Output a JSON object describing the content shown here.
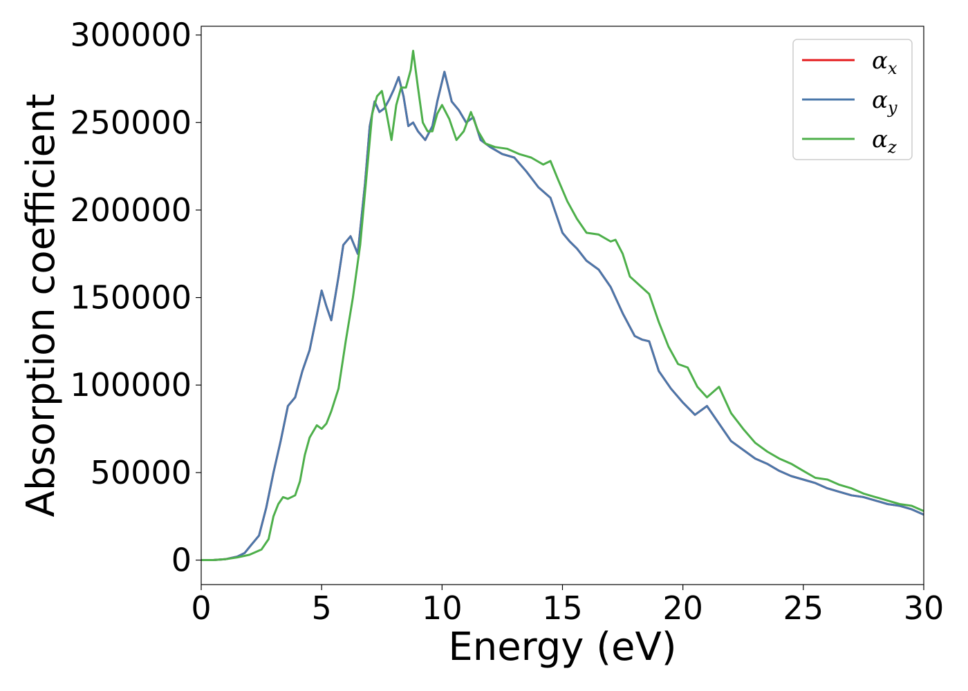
{
  "chart_data": {
    "type": "line",
    "title": "",
    "xlabel": "Energy (eV)",
    "ylabel": "Absorption coefficient",
    "xlim": [
      0,
      30
    ],
    "ylim": [
      -14000,
      305000
    ],
    "xticks": [
      0,
      5,
      10,
      15,
      20,
      25,
      30
    ],
    "yticks": [
      0,
      50000,
      100000,
      150000,
      200000,
      250000,
      300000
    ],
    "grid": false,
    "legend_position": "top-right",
    "series": [
      {
        "name": "α_x",
        "legend_symbol": "α",
        "legend_subscript": "x",
        "color": "#e41a1c",
        "x": [
          0,
          0.5,
          1.0,
          1.5,
          1.8,
          2.1,
          2.4,
          2.7,
          3.0,
          3.3,
          3.6,
          3.9,
          4.2,
          4.5,
          4.8,
          5.0,
          5.2,
          5.4,
          5.7,
          5.9,
          6.2,
          6.5,
          6.8,
          7.0,
          7.2,
          7.4,
          7.6,
          7.8,
          8.0,
          8.2,
          8.4,
          8.6,
          8.8,
          9.0,
          9.3,
          9.6,
          9.8,
          10.1,
          10.4,
          10.7,
          11.0,
          11.3,
          11.6,
          12.0,
          12.5,
          13.0,
          13.5,
          14.0,
          14.5,
          15.0,
          15.3,
          15.6,
          16.0,
          16.5,
          17.0,
          17.5,
          18.0,
          18.3,
          18.6,
          19.0,
          19.5,
          20.0,
          20.5,
          21.0,
          21.5,
          22.0,
          22.5,
          23.0,
          23.5,
          24.0,
          24.5,
          25.0,
          25.5,
          26.0,
          26.5,
          27.0,
          27.5,
          28.0,
          28.5,
          29.0,
          29.5,
          30.0
        ],
        "y": [
          0,
          0,
          500,
          2000,
          4000,
          9000,
          14000,
          30000,
          50000,
          68000,
          88000,
          93000,
          108000,
          120000,
          140000,
          154000,
          145000,
          137000,
          162000,
          180000,
          185000,
          175000,
          215000,
          248000,
          262000,
          256000,
          258000,
          263000,
          269000,
          276000,
          265000,
          248000,
          250000,
          245000,
          240000,
          248000,
          262000,
          279000,
          262000,
          257000,
          250000,
          253000,
          240000,
          236000,
          232000,
          230000,
          222000,
          213000,
          207000,
          187000,
          182000,
          178000,
          171000,
          166000,
          156000,
          141000,
          128000,
          126000,
          125000,
          108000,
          98000,
          90000,
          83000,
          88000,
          78000,
          68000,
          63000,
          58000,
          55000,
          51000,
          48000,
          46000,
          44000,
          41000,
          39000,
          37000,
          36000,
          34000,
          32000,
          31000,
          29000,
          26000
        ]
      },
      {
        "name": "α_y",
        "legend_symbol": "α",
        "legend_subscript": "y",
        "color": "#4a77aa",
        "x": [
          0,
          0.5,
          1.0,
          1.5,
          1.8,
          2.1,
          2.4,
          2.7,
          3.0,
          3.3,
          3.6,
          3.9,
          4.2,
          4.5,
          4.8,
          5.0,
          5.2,
          5.4,
          5.7,
          5.9,
          6.2,
          6.5,
          6.8,
          7.0,
          7.2,
          7.4,
          7.6,
          7.8,
          8.0,
          8.2,
          8.4,
          8.6,
          8.8,
          9.0,
          9.3,
          9.6,
          9.8,
          10.1,
          10.4,
          10.7,
          11.0,
          11.3,
          11.6,
          12.0,
          12.5,
          13.0,
          13.5,
          14.0,
          14.5,
          15.0,
          15.3,
          15.6,
          16.0,
          16.5,
          17.0,
          17.5,
          18.0,
          18.3,
          18.6,
          19.0,
          19.5,
          20.0,
          20.5,
          21.0,
          21.5,
          22.0,
          22.5,
          23.0,
          23.5,
          24.0,
          24.5,
          25.0,
          25.5,
          26.0,
          26.5,
          27.0,
          27.5,
          28.0,
          28.5,
          29.0,
          29.5,
          30.0
        ],
        "y": [
          0,
          0,
          500,
          2000,
          4000,
          9000,
          14000,
          30000,
          50000,
          68000,
          88000,
          93000,
          108000,
          120000,
          140000,
          154000,
          145000,
          137000,
          162000,
          180000,
          185000,
          175000,
          215000,
          248000,
          262000,
          256000,
          258000,
          263000,
          269000,
          276000,
          265000,
          248000,
          250000,
          245000,
          240000,
          248000,
          262000,
          279000,
          262000,
          257000,
          250000,
          253000,
          240000,
          236000,
          232000,
          230000,
          222000,
          213000,
          207000,
          187000,
          182000,
          178000,
          171000,
          166000,
          156000,
          141000,
          128000,
          126000,
          125000,
          108000,
          98000,
          90000,
          83000,
          88000,
          78000,
          68000,
          63000,
          58000,
          55000,
          51000,
          48000,
          46000,
          44000,
          41000,
          39000,
          37000,
          36000,
          34000,
          32000,
          31000,
          29000,
          26000
        ]
      },
      {
        "name": "α_z",
        "legend_symbol": "α",
        "legend_subscript": "z",
        "color": "#4daf4a",
        "x": [
          0,
          0.5,
          1.0,
          1.5,
          2.0,
          2.5,
          2.8,
          3.0,
          3.2,
          3.4,
          3.6,
          3.9,
          4.1,
          4.3,
          4.5,
          4.8,
          5.0,
          5.2,
          5.4,
          5.7,
          6.0,
          6.3,
          6.6,
          6.9,
          7.1,
          7.3,
          7.5,
          7.7,
          7.9,
          8.1,
          8.3,
          8.5,
          8.7,
          8.8,
          9.0,
          9.2,
          9.4,
          9.6,
          9.8,
          10.0,
          10.3,
          10.6,
          10.9,
          11.2,
          11.5,
          11.8,
          12.2,
          12.7,
          13.2,
          13.7,
          14.2,
          14.5,
          14.8,
          15.2,
          15.6,
          16.0,
          16.5,
          17.0,
          17.2,
          17.5,
          17.8,
          18.2,
          18.6,
          19.0,
          19.4,
          19.8,
          20.2,
          20.6,
          21.0,
          21.5,
          22.0,
          22.5,
          23.0,
          23.5,
          24.0,
          24.5,
          25.0,
          25.5,
          26.0,
          26.5,
          27.0,
          27.5,
          28.0,
          28.5,
          29.0,
          29.5,
          30.0
        ],
        "y": [
          0,
          0,
          500,
          1500,
          3000,
          6000,
          12000,
          25000,
          32000,
          36000,
          35000,
          37000,
          45000,
          60000,
          70000,
          77000,
          75000,
          78000,
          85000,
          98000,
          125000,
          150000,
          180000,
          225000,
          255000,
          265000,
          268000,
          255000,
          240000,
          260000,
          270000,
          270000,
          280000,
          291000,
          270000,
          250000,
          245000,
          245000,
          255000,
          260000,
          252000,
          240000,
          245000,
          256000,
          245000,
          238000,
          236000,
          235000,
          232000,
          230000,
          226000,
          228000,
          218000,
          205000,
          195000,
          187000,
          186000,
          182000,
          183000,
          175000,
          162000,
          157000,
          152000,
          136000,
          122000,
          112000,
          110000,
          99000,
          93000,
          99000,
          84000,
          75000,
          67000,
          62000,
          58000,
          55000,
          51000,
          47000,
          46000,
          43000,
          41000,
          38000,
          36000,
          34000,
          32000,
          31000,
          28000
        ]
      }
    ]
  }
}
